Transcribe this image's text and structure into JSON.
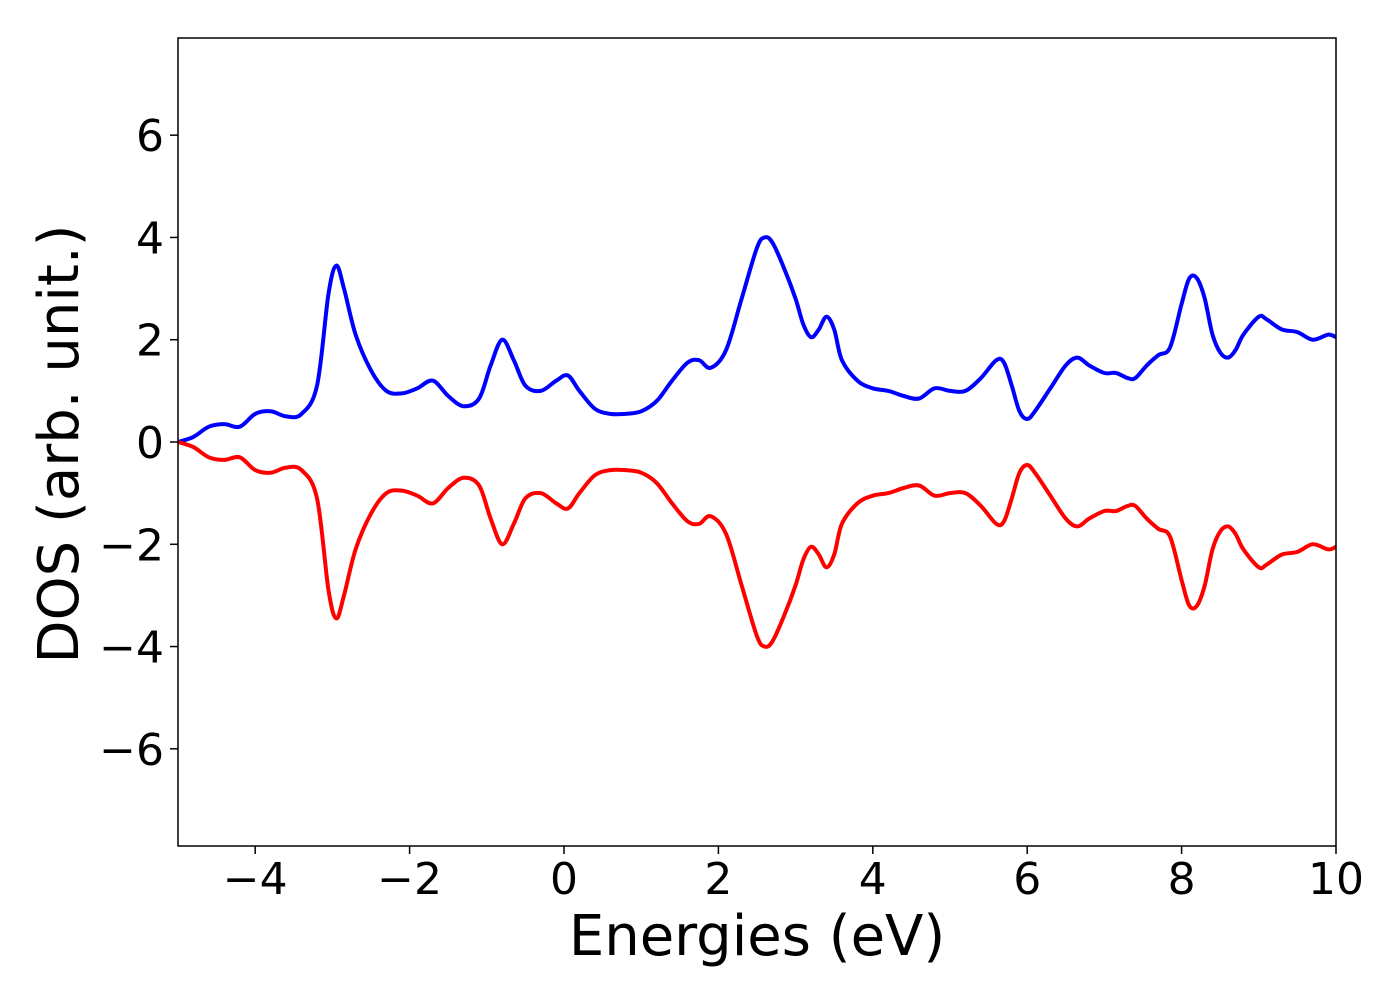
{
  "chart_data": {
    "type": "line",
    "title": "",
    "xlabel": "Energies (eV)",
    "ylabel": "DOS (arb. unit.)",
    "xlim": [
      -5,
      10
    ],
    "ylim": [
      -7.9,
      7.9
    ],
    "grid": false,
    "legend": "none",
    "xticks": [
      -4,
      -2,
      0,
      2,
      4,
      6,
      8,
      10
    ],
    "yticks": [
      -6,
      -4,
      -2,
      0,
      2,
      4,
      6
    ],
    "xtick_labels": [
      "−4",
      "−2",
      "0",
      "2",
      "4",
      "6",
      "8",
      "10"
    ],
    "ytick_labels": [
      "−6",
      "−4",
      "−2",
      "0",
      "2",
      "4",
      "6"
    ],
    "series": [
      {
        "color": "#0000ff",
        "x": [
          -5.0,
          -4.8,
          -4.6,
          -4.4,
          -4.2,
          -4.0,
          -3.8,
          -3.6,
          -3.4,
          -3.2,
          -3.05,
          -2.95,
          -2.85,
          -2.7,
          -2.5,
          -2.3,
          -2.1,
          -1.9,
          -1.7,
          -1.5,
          -1.3,
          -1.1,
          -0.95,
          -0.8,
          -0.65,
          -0.5,
          -0.3,
          -0.1,
          0.05,
          0.2,
          0.4,
          0.6,
          0.8,
          1.0,
          1.2,
          1.4,
          1.6,
          1.75,
          1.9,
          2.1,
          2.3,
          2.5,
          2.6,
          2.7,
          2.85,
          3.0,
          3.1,
          3.2,
          3.3,
          3.4,
          3.5,
          3.6,
          3.8,
          4.0,
          4.2,
          4.4,
          4.6,
          4.8,
          5.0,
          5.2,
          5.4,
          5.6,
          5.7,
          5.8,
          5.9,
          6.0,
          6.1,
          6.3,
          6.5,
          6.65,
          6.8,
          7.0,
          7.15,
          7.3,
          7.4,
          7.55,
          7.7,
          7.85,
          8.0,
          8.1,
          8.2,
          8.3,
          8.4,
          8.5,
          8.6,
          8.7,
          8.8,
          9.0,
          9.1,
          9.3,
          9.5,
          9.7,
          9.9,
          10.0
        ],
        "y": [
          0.0,
          0.1,
          0.3,
          0.35,
          0.3,
          0.55,
          0.6,
          0.5,
          0.55,
          1.1,
          2.9,
          3.45,
          3.0,
          2.1,
          1.4,
          1.0,
          0.95,
          1.05,
          1.2,
          0.9,
          0.7,
          0.85,
          1.5,
          2.0,
          1.6,
          1.1,
          1.0,
          1.2,
          1.3,
          1.0,
          0.65,
          0.55,
          0.55,
          0.6,
          0.8,
          1.2,
          1.55,
          1.6,
          1.45,
          1.8,
          2.8,
          3.8,
          4.0,
          3.9,
          3.4,
          2.8,
          2.3,
          2.05,
          2.2,
          2.45,
          2.2,
          1.6,
          1.2,
          1.05,
          1.0,
          0.9,
          0.85,
          1.05,
          1.0,
          1.0,
          1.25,
          1.6,
          1.55,
          1.1,
          0.6,
          0.45,
          0.6,
          1.05,
          1.5,
          1.65,
          1.5,
          1.35,
          1.35,
          1.25,
          1.25,
          1.5,
          1.7,
          1.85,
          2.7,
          3.2,
          3.2,
          2.8,
          2.1,
          1.75,
          1.65,
          1.8,
          2.1,
          2.45,
          2.4,
          2.2,
          2.15,
          2.0,
          2.1,
          2.05
        ]
      },
      {
        "color": "#ff0000",
        "x": [
          -5.0,
          -4.8,
          -4.6,
          -4.4,
          -4.2,
          -4.0,
          -3.8,
          -3.6,
          -3.4,
          -3.2,
          -3.05,
          -2.95,
          -2.85,
          -2.7,
          -2.5,
          -2.3,
          -2.1,
          -1.9,
          -1.7,
          -1.5,
          -1.3,
          -1.1,
          -0.95,
          -0.8,
          -0.65,
          -0.5,
          -0.3,
          -0.1,
          0.05,
          0.2,
          0.4,
          0.6,
          0.8,
          1.0,
          1.2,
          1.4,
          1.6,
          1.75,
          1.9,
          2.1,
          2.3,
          2.5,
          2.6,
          2.7,
          2.85,
          3.0,
          3.1,
          3.2,
          3.3,
          3.4,
          3.5,
          3.6,
          3.8,
          4.0,
          4.2,
          4.4,
          4.6,
          4.8,
          5.0,
          5.2,
          5.4,
          5.6,
          5.7,
          5.8,
          5.9,
          6.0,
          6.1,
          6.3,
          6.5,
          6.65,
          6.8,
          7.0,
          7.15,
          7.3,
          7.4,
          7.55,
          7.7,
          7.85,
          8.0,
          8.1,
          8.2,
          8.3,
          8.4,
          8.5,
          8.6,
          8.7,
          8.8,
          9.0,
          9.1,
          9.3,
          9.5,
          9.7,
          9.9,
          10.0
        ],
        "y": [
          0.0,
          -0.1,
          -0.3,
          -0.35,
          -0.3,
          -0.55,
          -0.6,
          -0.5,
          -0.55,
          -1.1,
          -2.9,
          -3.45,
          -3.0,
          -2.1,
          -1.4,
          -1.0,
          -0.95,
          -1.05,
          -1.2,
          -0.9,
          -0.7,
          -0.85,
          -1.5,
          -2.0,
          -1.6,
          -1.1,
          -1.0,
          -1.2,
          -1.3,
          -1.0,
          -0.65,
          -0.55,
          -0.55,
          -0.6,
          -0.8,
          -1.2,
          -1.55,
          -1.6,
          -1.45,
          -1.8,
          -2.8,
          -3.8,
          -4.0,
          -3.9,
          -3.4,
          -2.8,
          -2.3,
          -2.05,
          -2.2,
          -2.45,
          -2.2,
          -1.6,
          -1.2,
          -1.05,
          -1.0,
          -0.9,
          -0.85,
          -1.05,
          -1.0,
          -1.0,
          -1.25,
          -1.6,
          -1.55,
          -1.1,
          -0.6,
          -0.45,
          -0.6,
          -1.05,
          -1.5,
          -1.65,
          -1.5,
          -1.35,
          -1.35,
          -1.25,
          -1.25,
          -1.5,
          -1.7,
          -1.85,
          -2.7,
          -3.2,
          -3.2,
          -2.8,
          -2.1,
          -1.75,
          -1.65,
          -1.8,
          -2.1,
          -2.45,
          -2.4,
          -2.2,
          -2.15,
          -2.0,
          -2.1,
          -2.05
        ]
      }
    ]
  }
}
